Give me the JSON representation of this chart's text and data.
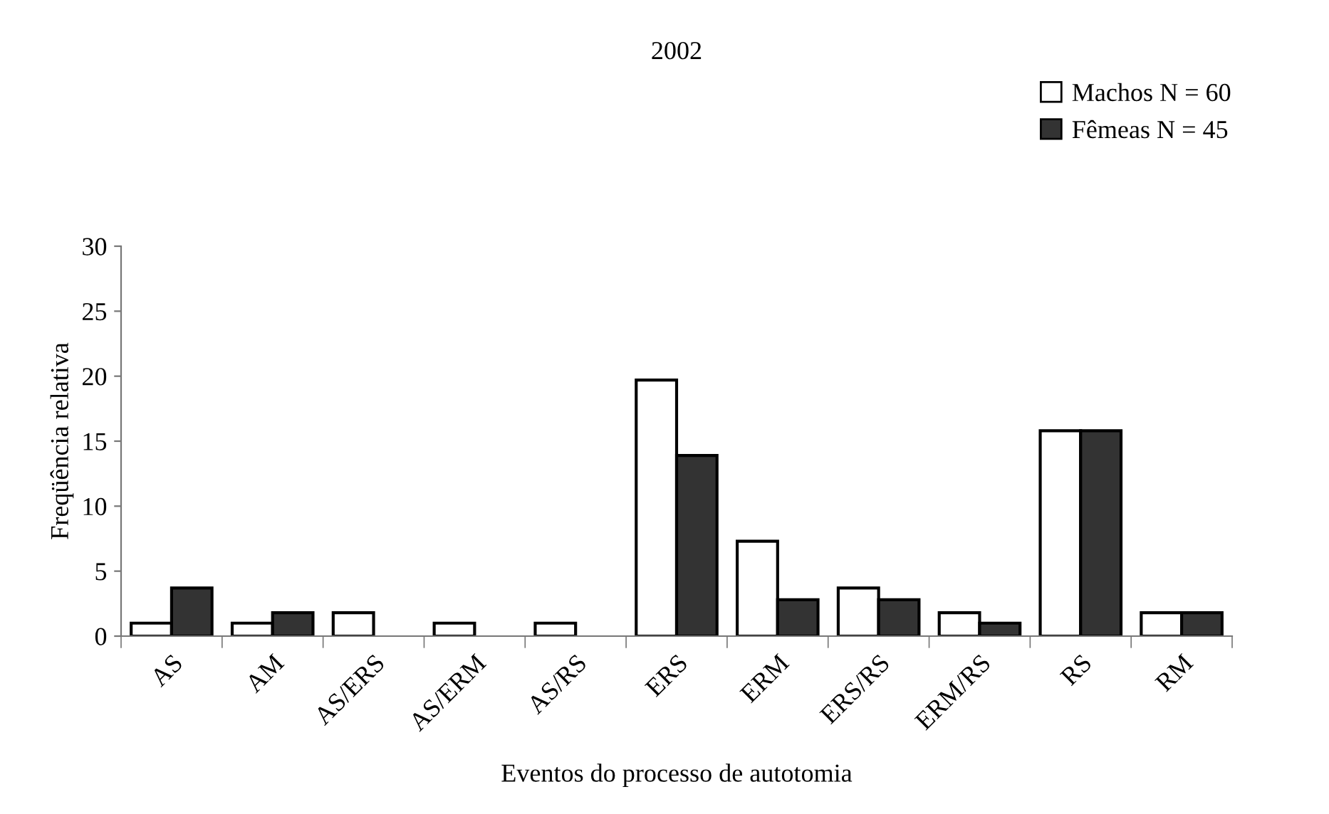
{
  "chart_data": {
    "type": "bar",
    "title": "2002",
    "xlabel": "Eventos do processo de autotomia",
    "ylabel": "Freqüência relativa",
    "categories": [
      "AS",
      "AM",
      "AS/ERS",
      "AS/ERM",
      "AS/RS",
      "ERS",
      "ERM",
      "ERS/RS",
      "ERM/RS",
      "RS",
      "RM"
    ],
    "series": [
      {
        "name": "Machos N = 60",
        "color": "#ffffff",
        "values": [
          1.0,
          1.0,
          1.8,
          1.0,
          1.0,
          19.7,
          7.3,
          3.7,
          1.8,
          15.8,
          1.8
        ]
      },
      {
        "name": "Fêmeas N = 45",
        "color": "#333333",
        "values": [
          3.7,
          1.8,
          0,
          0,
          0,
          13.9,
          2.8,
          2.8,
          1.0,
          15.8,
          1.8
        ]
      }
    ],
    "ylim": [
      0,
      30
    ],
    "yticks": [
      0,
      5,
      10,
      15,
      20,
      25,
      30
    ],
    "grid": false,
    "legend": "top right"
  }
}
